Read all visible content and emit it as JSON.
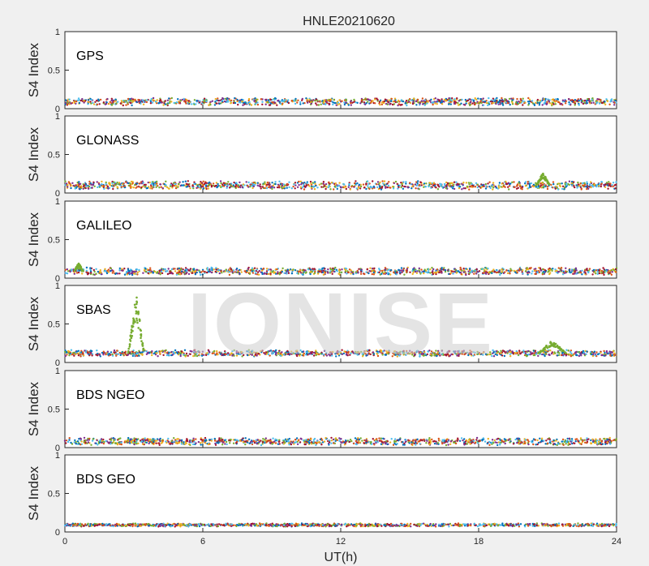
{
  "figure_title": "HNLE20210620",
  "watermark": "IONISE",
  "colors": [
    "#0072BD",
    "#D95319",
    "#EDB120",
    "#7E2F8E",
    "#77AC30",
    "#4DBEEE",
    "#A2142F"
  ],
  "chart_data": [
    {
      "type": "scatter",
      "name": "GPS",
      "ylabel": "S4 Index",
      "xlabel": "",
      "xlim": [
        0,
        24
      ],
      "ylim": [
        0,
        1
      ],
      "xticks": [
        0,
        6,
        12,
        18,
        24
      ],
      "yticks": [
        0,
        0.5,
        1
      ],
      "baseline": 0.09,
      "spread": 0.035,
      "bumps": []
    },
    {
      "type": "scatter",
      "name": "GLONASS",
      "ylabel": "S4 Index",
      "xlabel": "",
      "xlim": [
        0,
        24
      ],
      "ylim": [
        0,
        1
      ],
      "xticks": [
        0,
        6,
        12,
        18,
        24
      ],
      "yticks": [
        0,
        0.5,
        1
      ],
      "baseline": 0.1,
      "spread": 0.04,
      "bumps": [
        {
          "x": 20.8,
          "y": 0.27,
          "width": 0.6
        }
      ]
    },
    {
      "type": "scatter",
      "name": "GALILEO",
      "ylabel": "S4 Index",
      "xlabel": "",
      "xlim": [
        0,
        24
      ],
      "ylim": [
        0,
        1
      ],
      "xticks": [
        0,
        6,
        12,
        18,
        24
      ],
      "yticks": [
        0,
        0.5,
        1
      ],
      "baseline": 0.09,
      "spread": 0.035,
      "bumps": [
        {
          "x": 0.6,
          "y": 0.2,
          "width": 0.4
        }
      ]
    },
    {
      "type": "scatter",
      "name": "SBAS",
      "ylabel": "S4 Index",
      "xlabel": "",
      "xlim": [
        0,
        24
      ],
      "ylim": [
        0,
        1
      ],
      "xticks": [
        0,
        6,
        12,
        18,
        24
      ],
      "yticks": [
        0,
        0.5,
        1
      ],
      "baseline": 0.12,
      "spread": 0.03,
      "bumps": [
        {
          "x": 3.1,
          "y": 0.9,
          "width": 0.7
        },
        {
          "x": 21.2,
          "y": 0.3,
          "width": 1.2
        }
      ]
    },
    {
      "type": "scatter",
      "name": "BDS NGEO",
      "ylabel": "S4 Index",
      "xlabel": "",
      "xlim": [
        0,
        24
      ],
      "ylim": [
        0,
        1
      ],
      "xticks": [
        0,
        6,
        12,
        18,
        24
      ],
      "yticks": [
        0,
        0.5,
        1
      ],
      "baseline": 0.08,
      "spread": 0.035,
      "bumps": []
    },
    {
      "type": "scatter",
      "name": "BDS GEO",
      "ylabel": "S4 Index",
      "xlabel": "UT(h)",
      "xlim": [
        0,
        24
      ],
      "ylim": [
        0,
        1
      ],
      "xticks": [
        0,
        6,
        12,
        18,
        24
      ],
      "yticks": [
        0,
        0.5,
        1
      ],
      "baseline": 0.09,
      "spread": 0.015,
      "bumps": []
    }
  ]
}
